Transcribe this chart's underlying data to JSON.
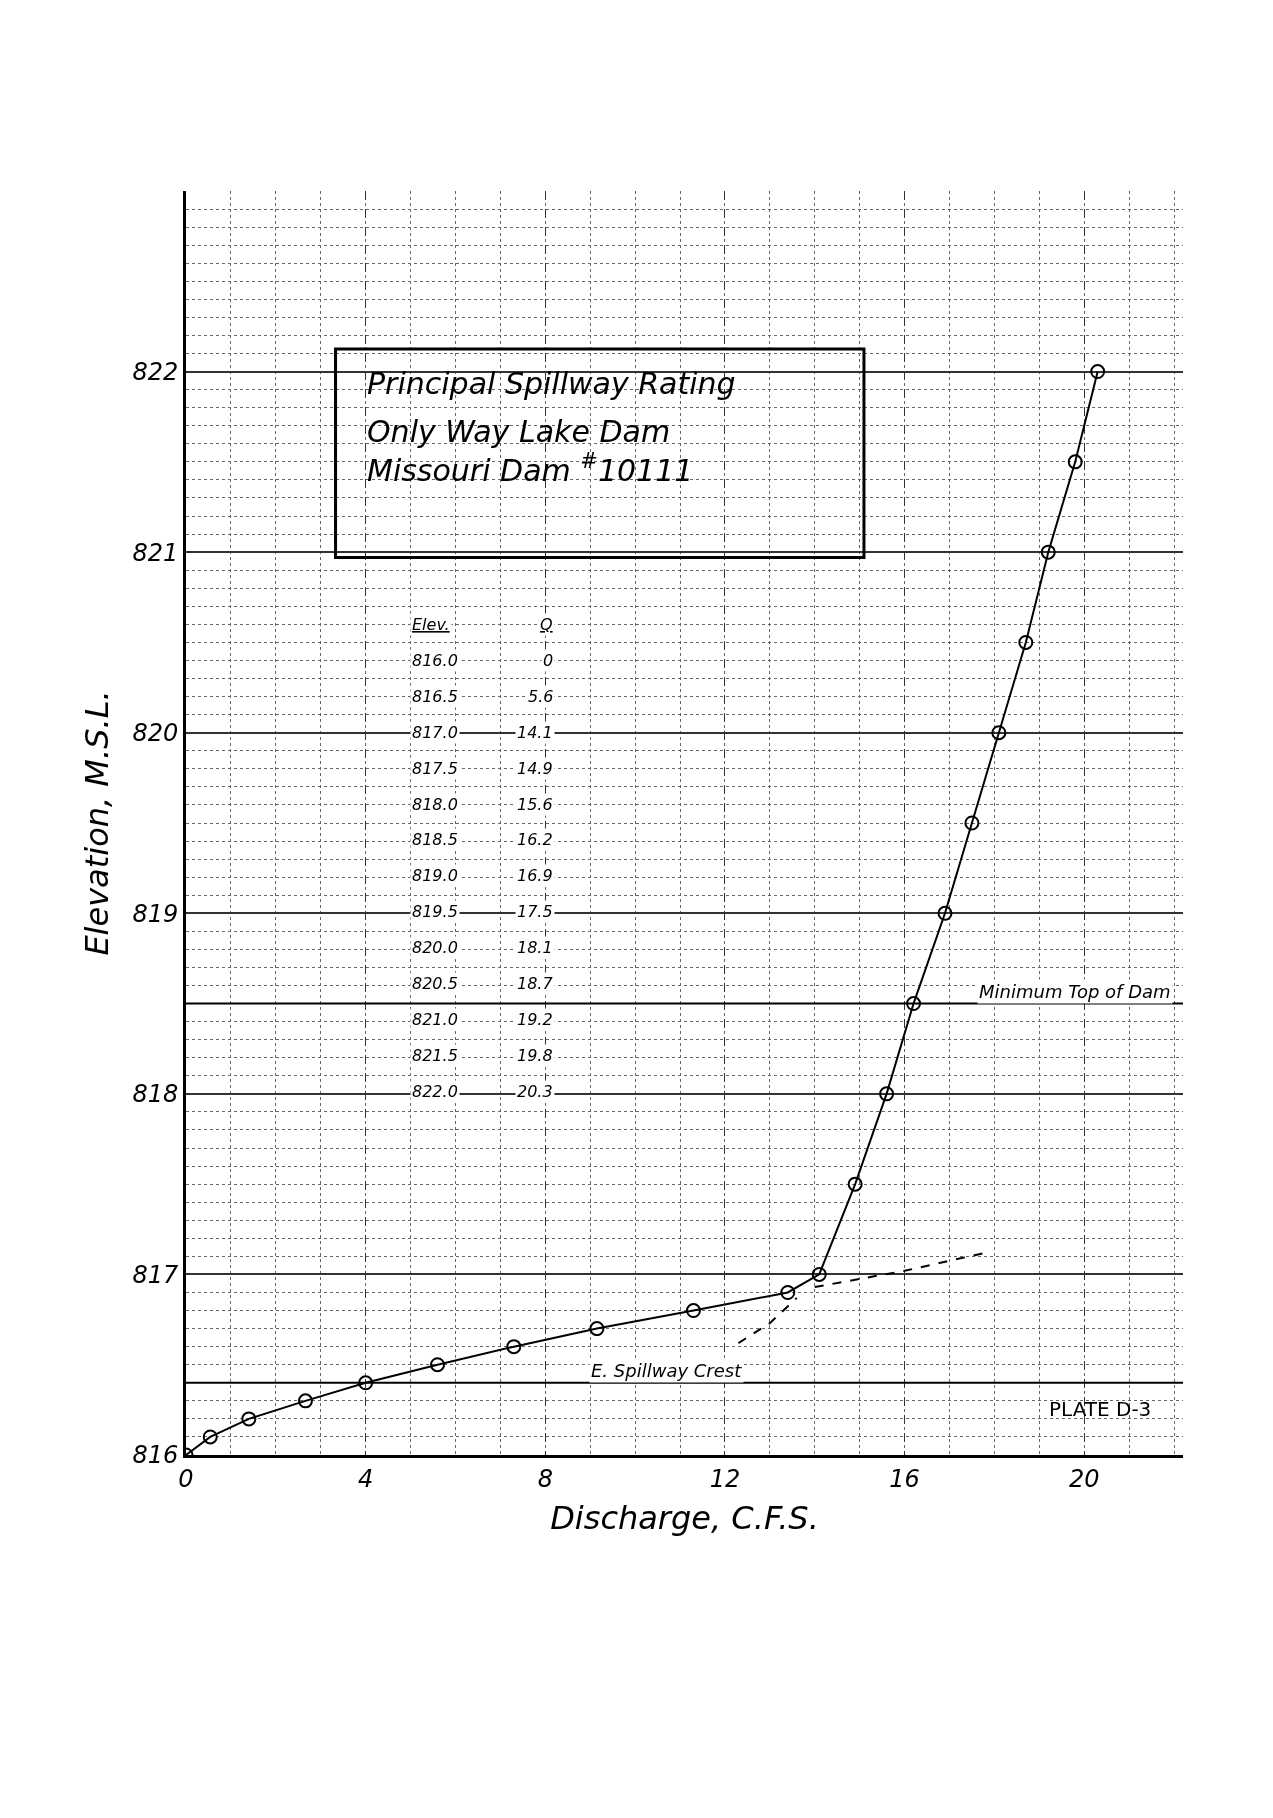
{
  "chart_data": {
    "type": "line",
    "title": "Principal Spillway Rating",
    "subtitle": "Only Way Lake Dam\nMissouri Dam $^{#}$10111",
    "xlabel": "Discharge, C.F.S.",
    "ylabel": "Elevation, M.S.L.",
    "series": [
      {
        "color": "#000000",
        "marker": "circle",
        "line_style": "solid",
        "x": [
          0,
          0.54,
          1.4,
          2.66,
          4.0,
          5.6,
          7.3,
          9.15,
          11.3,
          13.4,
          14.1,
          14.9,
          15.6,
          16.2,
          16.9,
          17.5,
          18.1,
          18.7,
          19.2,
          19.8,
          20.3
        ],
        "values": [
          816.0,
          816.1,
          816.2,
          816.3,
          816.4,
          816.5,
          816.6,
          816.7,
          816.8,
          816.9,
          817.0,
          817.5,
          818.0,
          818.5,
          819.0,
          819.5,
          820.0,
          820.5,
          821.0,
          821.5,
          822.0
        ]
      },
      {
        "color": "#000000",
        "marker": "none",
        "line_style": "dashed",
        "x": [
          14.0,
          16.0,
          17.8
        ],
        "values": [
          816.93,
          817.02,
          817.12
        ]
      },
      {
        "color": "#000000",
        "marker": "none",
        "line_style": "dashed",
        "x": [
          12.3,
          13.0,
          13.6
        ],
        "values": [
          816.62,
          816.73,
          816.87
        ]
      }
    ],
    "xlim": [
      0,
      22.2
    ],
    "ylim": [
      816,
      823
    ],
    "xticks": [
      0,
      4,
      8,
      12,
      16,
      20
    ],
    "yticks": [
      816,
      817,
      818,
      819,
      820,
      821,
      822
    ],
    "grid": true,
    "ref_lines": [
      {
        "axis": "y",
        "value": 818.5,
        "label": "Minimum Top of Dam",
        "color": "#000000",
        "line_style": "solid"
      },
      {
        "axis": "y",
        "value": 816.4,
        "label": "E. Spillway Crest",
        "color": "#000000",
        "line_style": "solid"
      }
    ],
    "annotations": [
      "Elev.",
      "Q",
      "816.0",
      "0",
      "816.5",
      "5.6",
      "817.0",
      "14.1",
      "817.5",
      "14.9",
      "818.0",
      "15.6",
      "818.5",
      "16.2",
      "819.0",
      "16.9",
      "819.5",
      "17.5",
      "820.0",
      "18.1",
      "820.5",
      "18.7",
      "821.0",
      "19.2",
      "821.5",
      "19.8",
      "822.0",
      "20.3",
      "PLATE D-3"
    ]
  }
}
